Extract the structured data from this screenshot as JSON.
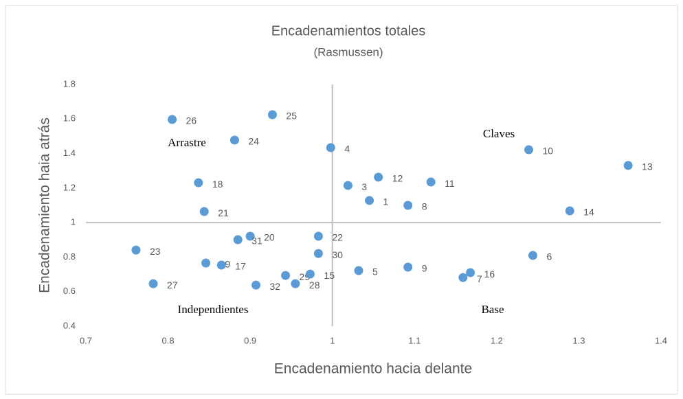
{
  "chart_data": {
    "type": "scatter",
    "title": "Encadenamientos totales",
    "subtitle": "(Rasmussen)",
    "x_label": "Encadenamiento hacia delante",
    "y_label": "Encadenamiento haia atrás",
    "color": "#5b9bd5",
    "point_labels": [
      "26",
      "25",
      "24",
      "4",
      "18",
      "21",
      "3",
      "12",
      "11",
      "1",
      "8",
      "10",
      "13",
      "14",
      "20",
      "31",
      "22",
      "30",
      "23",
      "19",
      "17",
      "29",
      "15",
      "28",
      "32",
      "27",
      "5",
      "9",
      "7",
      "16",
      "6"
    ],
    "x": [
      0.805,
      0.927,
      0.881,
      0.998,
      0.837,
      0.844,
      1.019,
      1.056,
      1.12,
      1.045,
      1.092,
      1.239,
      1.36,
      1.289,
      0.9,
      0.885,
      0.983,
      0.983,
      0.761,
      0.846,
      0.865,
      0.943,
      0.973,
      0.955,
      0.907,
      0.782,
      1.032,
      1.092,
      1.159,
      1.168,
      1.244
    ],
    "values": [
      1.597,
      1.625,
      1.478,
      1.434,
      1.231,
      1.064,
      1.215,
      1.263,
      1.235,
      1.128,
      1.1,
      1.422,
      1.331,
      1.068,
      0.921,
      0.901,
      0.921,
      0.821,
      0.841,
      0.766,
      0.754,
      0.694,
      0.702,
      0.646,
      0.638,
      0.646,
      0.722,
      0.742,
      0.682,
      0.71,
      0.81
    ],
    "xlim": [
      0.7,
      1.4
    ],
    "xticks": [
      0.7,
      0.8,
      0.9,
      1,
      1.1,
      1.2,
      1.3,
      1.4
    ],
    "ylim": [
      0.4,
      1.8
    ],
    "yticks": [
      0.4,
      0.6,
      0.8,
      1,
      1.2,
      1.4,
      1.6,
      1.8
    ],
    "axis_cross": [
      1,
      1
    ],
    "annotations": [
      "Arrastre",
      "Claves",
      "Independientes",
      "Base"
    ]
  }
}
